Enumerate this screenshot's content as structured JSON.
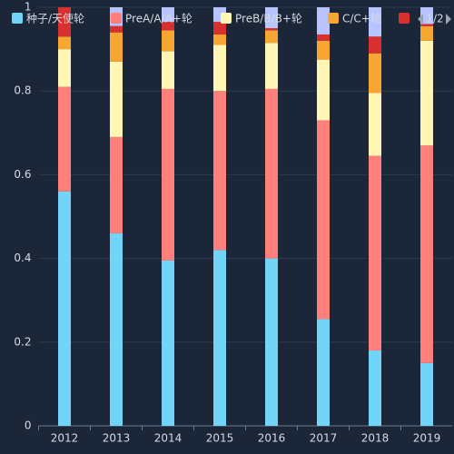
{
  "chart_data": {
    "type": "stacked_bar",
    "categories": [
      "2012",
      "2013",
      "2014",
      "2015",
      "2016",
      "2017",
      "2018",
      "2019"
    ],
    "series": [
      {
        "name": "种子/天使轮",
        "color": "#72d5f8",
        "values": [
          0.56,
          0.46,
          0.395,
          0.42,
          0.4,
          0.255,
          0.18,
          0.15
        ]
      },
      {
        "name": "PreA/A/A+轮",
        "color": "#ff7f7b",
        "values": [
          0.25,
          0.23,
          0.41,
          0.38,
          0.405,
          0.475,
          0.465,
          0.52
        ]
      },
      {
        "name": "PreB/B/B+轮",
        "color": "#fff5b4",
        "values": [
          0.09,
          0.18,
          0.09,
          0.11,
          0.11,
          0.145,
          0.15,
          0.25
        ]
      },
      {
        "name": "C/C+轮",
        "color": "#f6a631",
        "values": [
          0.03,
          0.07,
          0.05,
          0.025,
          0.03,
          0.045,
          0.095,
          0.035
        ]
      },
      {
        "color": "#d8302f",
        "values": [
          0.07,
          0.015,
          0.02,
          0.03,
          0.005,
          0.015,
          0.04,
          0.005
        ]
      },
      {
        "color": "#b7c4ff",
        "values": [
          0,
          0.045,
          0.035,
          0.035,
          0.05,
          0.065,
          0.07,
          0.04
        ]
      }
    ],
    "ylim": [
      0,
      1
    ],
    "yticks": [
      0,
      0.2,
      0.4,
      0.6,
      0.8,
      1
    ],
    "grid": true,
    "legend_page": "1/2"
  }
}
